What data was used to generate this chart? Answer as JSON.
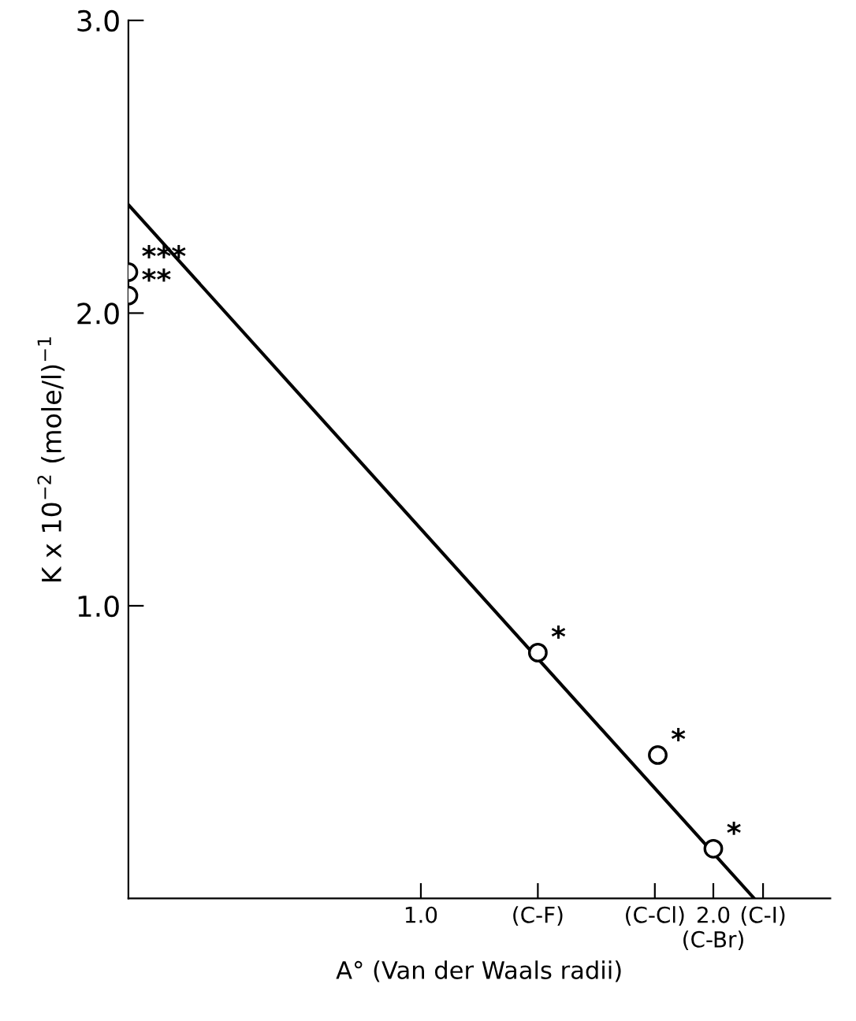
{
  "chart_data": {
    "type": "scatter",
    "xlabel": "A° (Van der Waals radii)",
    "ylabel": "K x 10$^{−2}$ (mole/l)$^{−1}$",
    "xlim": [
      0,
      2.4
    ],
    "ylim": [
      0,
      3.0
    ],
    "xticks": [
      {
        "value": 1.0,
        "label": "1.0"
      },
      {
        "value": 1.4,
        "label": "(C-F)"
      },
      {
        "value": 1.8,
        "label": "(C-Cl)"
      },
      {
        "value": 2.0,
        "label": "2.0\n(C-Br)"
      },
      {
        "value": 2.17,
        "label": "(C-I)"
      }
    ],
    "yticks": [
      {
        "value": 1.0,
        "label": "1.0"
      },
      {
        "value": 2.0,
        "label": "2.0"
      },
      {
        "value": 3.0,
        "label": "3.0"
      }
    ],
    "series": [
      {
        "marker": "circle",
        "color": "#000000",
        "x": [
          0,
          0,
          1.4,
          1.81,
          2.0
        ],
        "values": [
          2.14,
          2.06,
          0.84,
          0.49,
          0.17
        ]
      },
      {
        "type": "line",
        "color": "#000000",
        "x": [
          0,
          2.14
        ],
        "values": [
          2.37,
          0
        ]
      }
    ],
    "annotations": [
      {
        "text": "***",
        "x": 0,
        "y": 2.14
      },
      {
        "text": "**",
        "x": 0,
        "y": 2.06
      },
      {
        "text": "*",
        "x": 1.4,
        "y": 0.84
      },
      {
        "text": "*",
        "x": 1.81,
        "y": 0.49
      },
      {
        "text": "*",
        "x": 2.0,
        "y": 0.17
      }
    ],
    "grid": false,
    "legend": false
  }
}
